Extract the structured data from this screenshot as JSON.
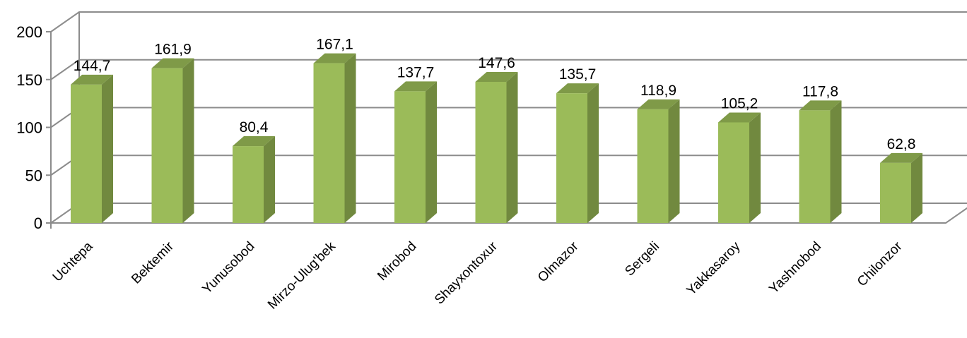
{
  "chart_data": {
    "type": "bar",
    "style": "3d-column",
    "categories": [
      "Uchtepa",
      "Bektemir",
      "Yunusobod",
      "Mirzo-Ulug'bek",
      "Mirobod",
      "Shayxontoxur",
      "Olmazor",
      "Sergeli",
      "Yakkasaroy",
      "Yashnobod",
      "Chilonzor"
    ],
    "values": [
      144.7,
      161.9,
      80.4,
      167.1,
      137.7,
      147.6,
      135.7,
      118.9,
      105.2,
      117.8,
      62.8
    ],
    "value_labels": [
      "144,7",
      "161,9",
      "80,4",
      "167,1",
      "137,7",
      "147,6",
      "135,7",
      "118,9",
      "105,2",
      "117,8",
      "62,8"
    ],
    "ylim": [
      0,
      200
    ],
    "yticks": [
      0,
      50,
      100,
      150,
      200
    ],
    "title": "",
    "xlabel": "",
    "ylabel": "",
    "grid": true,
    "legend": "none",
    "colors": {
      "bar_front": "#9bbb59",
      "bar_side": "#71893f",
      "bar_top": "#7f9a48",
      "grid": "#8c8c8c"
    }
  }
}
